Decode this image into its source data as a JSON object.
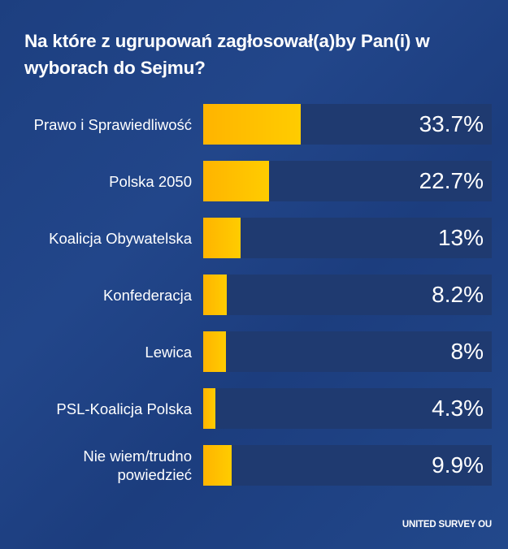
{
  "chart_data": {
    "type": "bar",
    "orientation": "horizontal",
    "title": "Na które z ugrupowań zagłosował(a)by Pan(i) w wyborach do Sejmu?",
    "categories": [
      "Prawo i Sprawiedliwość",
      "Polska 2050",
      "Koalicja Obywatelska",
      "Konfederacja",
      "Lewica",
      "PSL-Koalicja Polska",
      "Nie wiem/trudno powiedzieć"
    ],
    "values": [
      33.7,
      22.7,
      13,
      8.2,
      8,
      4.3,
      9.9
    ],
    "value_labels": [
      "33.7%",
      "22.7%",
      "13%",
      "8.2%",
      "8%",
      "4.3%",
      "9.9%"
    ],
    "xlabel": "",
    "ylabel": "",
    "xlim": [
      0,
      100
    ],
    "grid": false,
    "legend": null,
    "source": "UNITED SURVEY OU"
  },
  "title": "Na które z ugrupowań zagłosował(a)by Pan(i) w wyborach do Sejmu?",
  "rows": [
    {
      "label": "Prawo i Sprawiedliwość",
      "value": 33.7,
      "value_label": "33.7%"
    },
    {
      "label": "Polska 2050",
      "value": 22.7,
      "value_label": "22.7%"
    },
    {
      "label": "Koalicja Obywatelska",
      "value": 13,
      "value_label": "13%"
    },
    {
      "label": "Konfederacja",
      "value": 8.2,
      "value_label": "8.2%"
    },
    {
      "label": "Lewica",
      "value": 8,
      "value_label": "8%"
    },
    {
      "label": "PSL-Koalicja Polska",
      "value": 4.3,
      "value_label": "4.3%"
    },
    {
      "label": "Nie wiem/trudno powiedzieć",
      "value": 9.9,
      "value_label": "9.9%"
    }
  ],
  "source": "UNITED SURVEY OU",
  "colors": {
    "background": "#1f4285",
    "track": "#1f3a70",
    "bar_start": "#ffb400",
    "bar_end": "#ffcc00",
    "text": "#ffffff"
  }
}
